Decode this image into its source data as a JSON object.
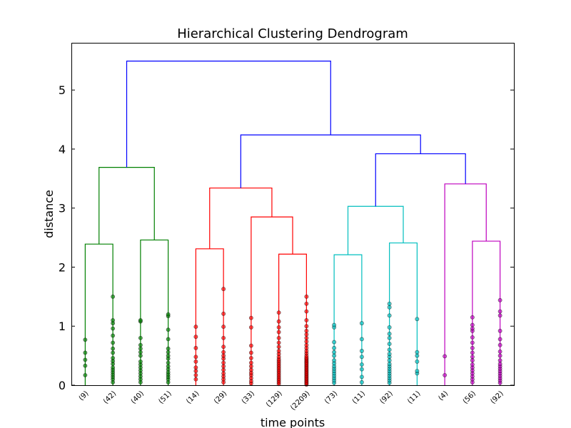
{
  "chart_data": {
    "type": "dendrogram",
    "title": "Hierarchical Clustering Dendrogram",
    "xlabel": "time points",
    "ylabel": "distance",
    "ylim": [
      0,
      5.8
    ],
    "yticks": [
      "0",
      "1",
      "2",
      "3",
      "4",
      "5"
    ],
    "leaves": [
      "(9)",
      "(42)",
      "(40)",
      "(51)",
      "(14)",
      "(29)",
      "(33)",
      "(129)",
      "(2209)",
      "(73)",
      "(11)",
      "(92)",
      "(11)",
      "(4)",
      "(56)",
      "(92)"
    ],
    "clusters": [
      {
        "name": "1",
        "color": "#008000",
        "leaves": [
          0,
          1,
          2,
          3
        ]
      },
      {
        "name": "2",
        "color": "#ff0000",
        "leaves": [
          4,
          5,
          6,
          7,
          8
        ]
      },
      {
        "name": "3",
        "color": "#00bfbf",
        "leaves": [
          9,
          10,
          11,
          12
        ]
      },
      {
        "name": "4",
        "color": "#bf00bf",
        "leaves": [
          13,
          14,
          15
        ]
      }
    ],
    "link_color_above": "#0000ff",
    "merges": [
      {
        "left": "L0",
        "right": "L1",
        "height": 2.39,
        "color": "#008000"
      },
      {
        "left": "L2",
        "right": "L3",
        "height": 2.46,
        "color": "#008000"
      },
      {
        "left": "M0",
        "right": "M1",
        "height": 3.69,
        "color": "#008000"
      },
      {
        "left": "L4",
        "right": "L5",
        "height": 2.31,
        "color": "#ff0000"
      },
      {
        "left": "L7",
        "right": "L8",
        "height": 2.22,
        "color": "#ff0000"
      },
      {
        "left": "L6",
        "right": "M4",
        "height": 2.85,
        "color": "#ff0000"
      },
      {
        "left": "M3",
        "right": "M5",
        "height": 3.34,
        "color": "#ff0000"
      },
      {
        "left": "L9",
        "right": "L10",
        "height": 2.21,
        "color": "#00bfbf"
      },
      {
        "left": "L11",
        "right": "L12",
        "height": 2.41,
        "color": "#00bfbf"
      },
      {
        "left": "M7",
        "right": "M8",
        "height": 3.03,
        "color": "#00bfbf"
      },
      {
        "left": "L14",
        "right": "L15",
        "height": 2.44,
        "color": "#bf00bf"
      },
      {
        "left": "L13",
        "right": "M10",
        "height": 3.41,
        "color": "#bf00bf"
      },
      {
        "left": "M9",
        "right": "M11",
        "height": 3.92,
        "color": "#0000ff"
      },
      {
        "left": "M6",
        "right": "M12",
        "height": 4.24,
        "color": "#0000ff"
      },
      {
        "left": "M2",
        "right": "M13",
        "height": 5.49,
        "color": "#0000ff"
      }
    ],
    "leaf_points": [
      [
        0.17,
        0.33,
        0.43,
        0.55,
        0.77
      ],
      [
        0.05,
        0.1,
        0.14,
        0.18,
        0.22,
        0.26,
        0.3,
        0.36,
        0.41,
        0.46,
        0.55,
        0.62,
        0.72,
        0.84,
        0.96,
        1.05,
        1.1,
        1.5
      ],
      [
        0.05,
        0.1,
        0.15,
        0.2,
        0.25,
        0.3,
        0.35,
        0.4,
        0.5,
        0.56,
        0.62,
        0.68,
        0.8,
        1.08,
        1.1
      ],
      [
        0.05,
        0.1,
        0.14,
        0.18,
        0.22,
        0.27,
        0.32,
        0.38,
        0.45,
        0.5,
        0.56,
        0.62,
        0.78,
        0.94,
        1.17,
        1.2
      ],
      [
        0.1,
        0.17,
        0.24,
        0.3,
        0.4,
        0.48,
        0.63,
        0.82,
        0.99
      ],
      [
        0.05,
        0.1,
        0.15,
        0.2,
        0.26,
        0.32,
        0.38,
        0.45,
        0.5,
        0.56,
        0.65,
        0.8,
        0.99,
        1.21,
        1.63
      ],
      [
        0.03,
        0.07,
        0.12,
        0.17,
        0.21,
        0.26,
        0.32,
        0.38,
        0.46,
        0.55,
        0.67,
        0.98,
        1.14
      ],
      [
        0.02,
        0.05,
        0.08,
        0.11,
        0.14,
        0.17,
        0.2,
        0.23,
        0.26,
        0.29,
        0.32,
        0.35,
        0.38,
        0.41,
        0.44,
        0.48,
        0.53,
        0.58,
        0.65,
        0.72,
        0.8,
        0.9,
        0.98,
        1.08,
        1.23
      ],
      [
        0.01,
        0.03,
        0.05,
        0.07,
        0.09,
        0.11,
        0.13,
        0.15,
        0.17,
        0.19,
        0.21,
        0.23,
        0.25,
        0.27,
        0.29,
        0.31,
        0.33,
        0.35,
        0.37,
        0.39,
        0.41,
        0.43,
        0.45,
        0.47,
        0.5,
        0.54,
        0.58,
        0.63,
        0.68,
        0.74,
        0.8,
        0.86,
        0.92,
        1.0,
        1.1,
        1.25,
        1.38,
        1.5
      ],
      [
        0.04,
        0.08,
        0.12,
        0.16,
        0.2,
        0.24,
        0.28,
        0.32,
        0.37,
        0.42,
        0.5,
        0.56,
        0.63,
        0.73,
        0.98,
        1.02
      ],
      [
        0.05,
        0.14,
        0.27,
        0.35,
        0.48,
        0.58,
        0.78,
        1.05
      ],
      [
        0.04,
        0.08,
        0.12,
        0.16,
        0.2,
        0.24,
        0.28,
        0.32,
        0.36,
        0.42,
        0.48,
        0.53,
        0.6,
        0.7,
        0.8,
        0.87,
        0.98,
        1.18,
        1.32,
        1.38
      ],
      [
        0.2,
        0.24,
        0.4,
        0.5,
        0.56,
        1.12
      ],
      [
        0.17,
        0.49
      ],
      [
        0.05,
        0.1,
        0.15,
        0.2,
        0.25,
        0.3,
        0.35,
        0.42,
        0.48,
        0.55,
        0.63,
        0.72,
        0.81,
        0.92,
        0.96,
        1.02,
        1.15
      ],
      [
        0.04,
        0.08,
        0.12,
        0.16,
        0.2,
        0.24,
        0.28,
        0.32,
        0.36,
        0.42,
        0.5,
        0.57,
        0.68,
        0.78,
        0.92,
        1.18,
        1.25,
        1.44
      ]
    ],
    "grid": false,
    "legend": "none"
  }
}
